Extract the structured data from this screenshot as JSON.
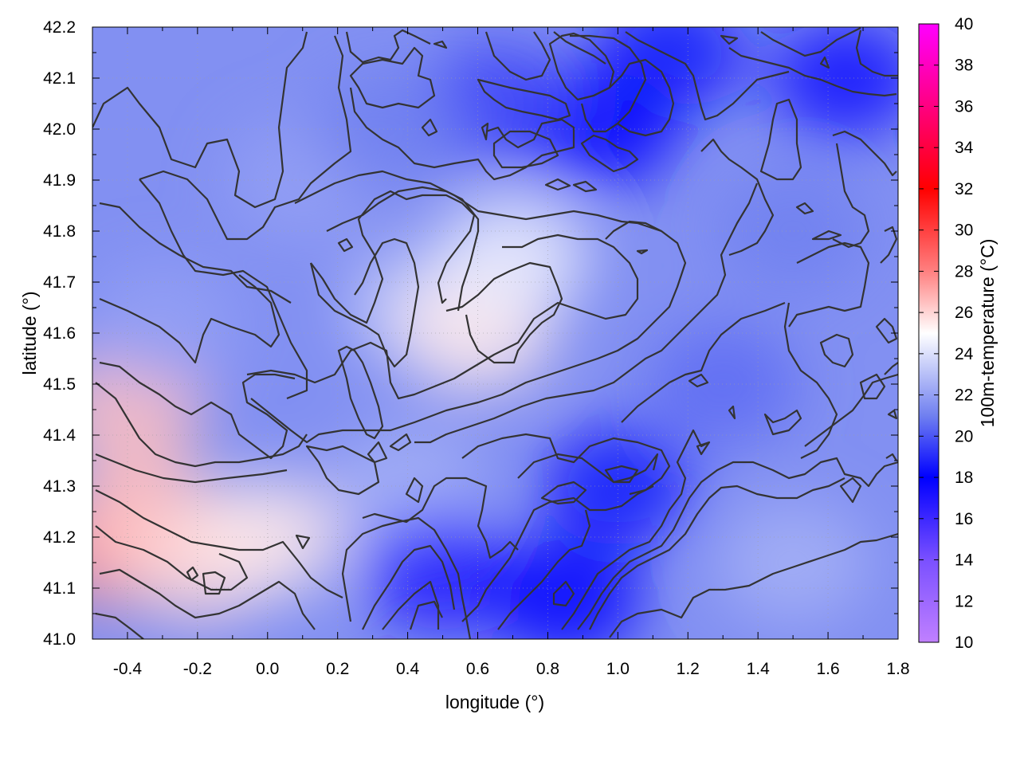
{
  "chart_data": {
    "type": "heatmap",
    "title": "",
    "xlabel": "longitude (°)",
    "ylabel": "latitude (°)",
    "colorbar_label": "100m-temperature (°C)",
    "xlim": [
      -0.5,
      1.8
    ],
    "ylim": [
      41.0,
      42.2
    ],
    "x_ticks": [
      -0.4,
      -0.2,
      0.0,
      0.2,
      0.4,
      0.6,
      0.8,
      1.0,
      1.2,
      1.4,
      1.6,
      1.8
    ],
    "x_tick_labels": [
      "-0.4",
      "-0.2",
      "0.0",
      "0.2",
      "0.4",
      "0.6",
      "0.8",
      "1.0",
      "1.2",
      "1.4",
      "1.6",
      "1.8"
    ],
    "y_ticks": [
      41.0,
      41.1,
      41.2,
      41.3,
      41.4,
      41.5,
      41.6,
      41.7,
      41.8,
      41.9,
      42.0,
      42.1,
      42.2
    ],
    "y_tick_labels": [
      "41.0",
      "41.1",
      "41.2",
      "41.3",
      "41.4",
      "41.5",
      "41.6",
      "41.7",
      "41.8",
      "41.9",
      "42.0",
      "42.1",
      "42.2"
    ],
    "color_range": [
      10,
      40
    ],
    "colorbar_ticks": [
      10,
      12,
      14,
      16,
      18,
      20,
      22,
      24,
      26,
      28,
      30,
      32,
      34,
      36,
      38,
      40
    ],
    "colorbar_tick_labels": [
      "10",
      "12",
      "14",
      "16",
      "18",
      "20",
      "22",
      "24",
      "26",
      "28",
      "30",
      "32",
      "34",
      "36",
      "38",
      "40"
    ],
    "colormap": [
      {
        "value": 10,
        "color": "#c080ff"
      },
      {
        "value": 14,
        "color": "#7a50ff"
      },
      {
        "value": 18,
        "color": "#0000ff"
      },
      {
        "value": 21,
        "color": "#7080f0"
      },
      {
        "value": 25,
        "color": "#ffffff"
      },
      {
        "value": 28,
        "color": "#ff8080"
      },
      {
        "value": 32,
        "color": "#ff0000"
      },
      {
        "value": 36,
        "color": "#ff0080"
      },
      {
        "value": 40,
        "color": "#ff00ff"
      }
    ],
    "grid": true,
    "contours": true,
    "contour_color": "#333333",
    "field_samples": [
      {
        "lon": -0.45,
        "lat": 41.18,
        "temp": 27.5
      },
      {
        "lon": -0.35,
        "lat": 41.25,
        "temp": 26.5
      },
      {
        "lon": -0.2,
        "lat": 41.15,
        "temp": 26.0
      },
      {
        "lon": -0.4,
        "lat": 41.45,
        "temp": 26.5
      },
      {
        "lon": 0.0,
        "lat": 41.2,
        "temp": 25.5
      },
      {
        "lon": -0.3,
        "lat": 41.62,
        "temp": 22.0
      },
      {
        "lon": 0.1,
        "lat": 41.9,
        "temp": 22.0
      },
      {
        "lon": 0.45,
        "lat": 41.65,
        "temp": 23.5
      },
      {
        "lon": 0.6,
        "lat": 41.6,
        "temp": 25.5
      },
      {
        "lon": 0.7,
        "lat": 41.75,
        "temp": 24.5
      },
      {
        "lon": 0.4,
        "lat": 41.3,
        "temp": 22.5
      },
      {
        "lon": 0.5,
        "lat": 41.13,
        "temp": 17.0
      },
      {
        "lon": 0.85,
        "lat": 41.08,
        "temp": 18.0
      },
      {
        "lon": 1.0,
        "lat": 41.3,
        "temp": 18.5
      },
      {
        "lon": 1.5,
        "lat": 41.15,
        "temp": 22.5
      },
      {
        "lon": 1.3,
        "lat": 41.5,
        "temp": 20.5
      },
      {
        "lon": 1.5,
        "lat": 41.8,
        "temp": 21.0
      },
      {
        "lon": 1.65,
        "lat": 42.1,
        "temp": 17.5
      },
      {
        "lon": 1.15,
        "lat": 42.15,
        "temp": 18.5
      },
      {
        "lon": 0.95,
        "lat": 42.0,
        "temp": 18.0
      },
      {
        "lon": 0.65,
        "lat": 42.05,
        "temp": 19.5
      },
      {
        "lon": 0.35,
        "lat": 42.0,
        "temp": 21.0
      }
    ]
  }
}
